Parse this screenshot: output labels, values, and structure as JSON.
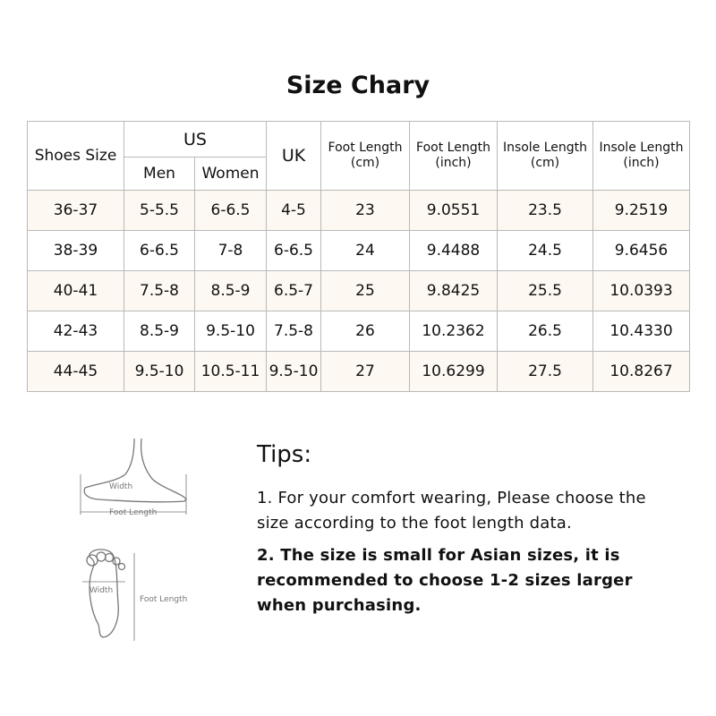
{
  "title": "Size Chary",
  "table": {
    "header": {
      "shoes_size": "Shoes Size",
      "us": "US",
      "men": "Men",
      "women": "Women",
      "uk": "UK",
      "foot_length_cm": [
        "Foot Length",
        "(cm)"
      ],
      "foot_length_inch": [
        "Foot Length",
        "(inch)"
      ],
      "insole_length_cm": [
        "Insole Length",
        "(cm)"
      ],
      "insole_length_inch": [
        "Insole Length",
        "(inch)"
      ]
    },
    "rows": [
      [
        "36-37",
        "5-5.5",
        "6-6.5",
        "4-5",
        "23",
        "9.0551",
        "23.5",
        "9.2519"
      ],
      [
        "38-39",
        "6-6.5",
        "7-8",
        "6-6.5",
        "24",
        "9.4488",
        "24.5",
        "9.6456"
      ],
      [
        "40-41",
        "7.5-8",
        "8.5-9",
        "6.5-7",
        "25",
        "9.8425",
        "25.5",
        "10.0393"
      ],
      [
        "42-43",
        "8.5-9",
        "9.5-10",
        "7.5-8",
        "26",
        "10.2362",
        "26.5",
        "10.4330"
      ],
      [
        "44-45",
        "9.5-10",
        "10.5-11",
        "9.5-10",
        "27",
        "10.6299",
        "27.5",
        "10.8267"
      ]
    ]
  },
  "diagrams": {
    "side": {
      "width": "Width",
      "length": "Foot Length"
    },
    "bottom": {
      "width": "Width",
      "length": "Foot Length"
    }
  },
  "tips": {
    "title": "Tips:",
    "items": [
      "1. For your comfort wearing, Please choose the size according to the foot length data.",
      "2. The size is small for Asian sizes, it is recommended to choose 1-2 sizes larger when purchasing."
    ]
  }
}
